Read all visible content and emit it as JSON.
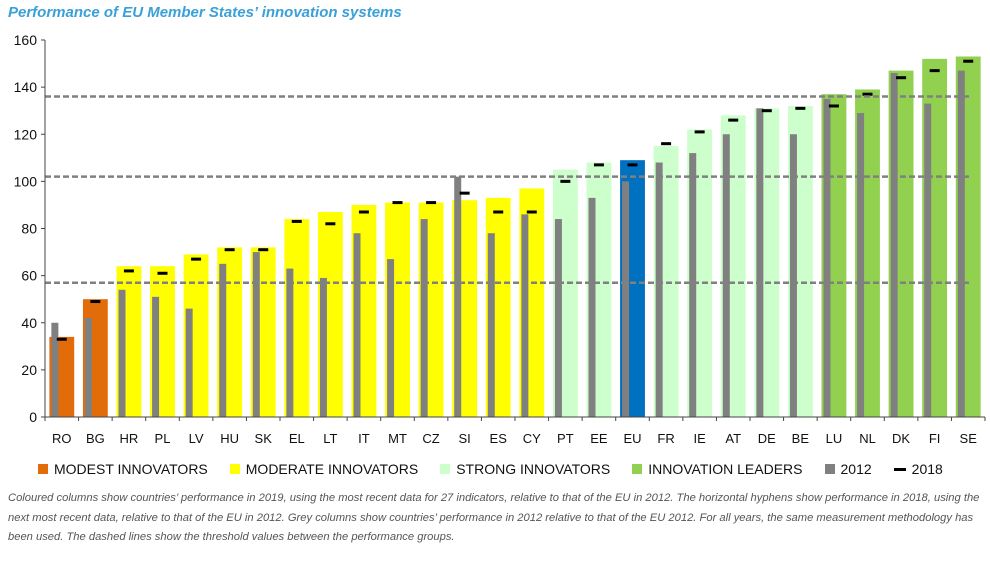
{
  "title": "Performance of EU Member States’ innovation systems",
  "caption": "Coloured columns show countries’ performance in 2019, using the most recent data for 27 indicators, relative to that of the EU in 2012. The horizontal hyphens show performance in 2018, using the next most recent data, relative to that of the EU in 2012. Grey columns show countries’ performance in 2012 relative to that of the EU 2012. For all years, the same measurement methodology has been used. The dashed lines show the threshold values between the performance groups.",
  "colors": {
    "modest": "#e36c0a",
    "moderate": "#ffff00",
    "strong": "#ccffcc",
    "leader": "#92d050",
    "eu": "#0070c0",
    "grey2012": "#808080",
    "dash2018": "#000000",
    "threshold": "#808080"
  },
  "legend": {
    "items": [
      {
        "label": "MODEST INNOVATORS",
        "swatch": "modest"
      },
      {
        "label": "MODERATE INNOVATORS",
        "swatch": "moderate"
      },
      {
        "label": "STRONG INNOVATORS",
        "swatch": "strong"
      },
      {
        "label": "INNOVATION LEADERS",
        "swatch": "leader"
      },
      {
        "label": "2012",
        "swatch": "grey2012"
      },
      {
        "label": "2018",
        "swatch": "dash"
      }
    ]
  },
  "chart_data": {
    "type": "bar",
    "ylim": [
      0,
      160
    ],
    "yticks": [
      0,
      20,
      40,
      60,
      80,
      100,
      120,
      140,
      160
    ],
    "grid": false,
    "legend_position": "bottom",
    "thresholds": [
      57,
      102,
      136
    ],
    "categories": [
      "RO",
      "BG",
      "HR",
      "PL",
      "LV",
      "HU",
      "SK",
      "EL",
      "LT",
      "IT",
      "MT",
      "CZ",
      "SI",
      "ES",
      "CY",
      "PT",
      "EE",
      "EU",
      "FR",
      "IE",
      "AT",
      "DE",
      "BE",
      "LU",
      "NL",
      "DK",
      "FI",
      "SE"
    ],
    "groups": [
      "modest",
      "modest",
      "moderate",
      "moderate",
      "moderate",
      "moderate",
      "moderate",
      "moderate",
      "moderate",
      "moderate",
      "moderate",
      "moderate",
      "moderate",
      "moderate",
      "moderate",
      "strong",
      "strong",
      "eu",
      "strong",
      "strong",
      "strong",
      "strong",
      "strong",
      "leader",
      "leader",
      "leader",
      "leader",
      "leader"
    ],
    "series": [
      {
        "name": "2019",
        "values": [
          34,
          50,
          64,
          64,
          69,
          72,
          72,
          84,
          87,
          90,
          91,
          91,
          92,
          93,
          97,
          105,
          108,
          109,
          115,
          122,
          128,
          131,
          132,
          137,
          139,
          147,
          152,
          153
        ]
      },
      {
        "name": "2012",
        "values": [
          40,
          42,
          54,
          51,
          46,
          65,
          70,
          63,
          59,
          78,
          67,
          84,
          102,
          78,
          86,
          84,
          93,
          100,
          108,
          112,
          120,
          131,
          120,
          135,
          129,
          146,
          133,
          147
        ]
      },
      {
        "name": "2018",
        "values": [
          33,
          49,
          62,
          61,
          67,
          71,
          71,
          83,
          82,
          87,
          91,
          91,
          95,
          87,
          87,
          100,
          107,
          107,
          116,
          121,
          126,
          130,
          131,
          132,
          137,
          144,
          147,
          151
        ]
      }
    ]
  }
}
